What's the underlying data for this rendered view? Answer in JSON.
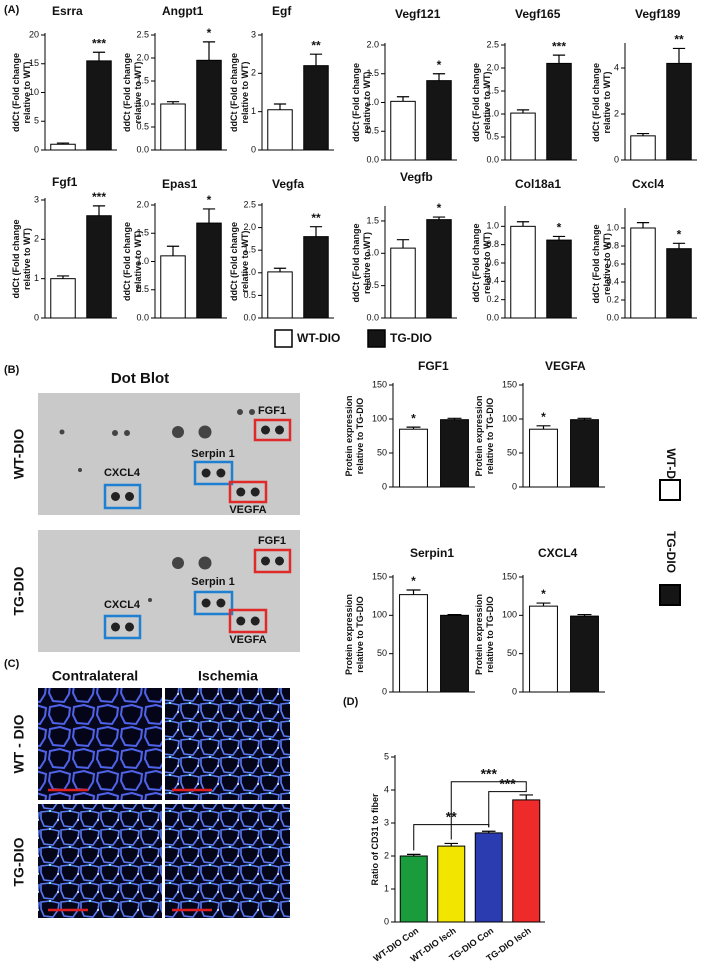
{
  "panel_labels": [
    "(A)",
    "(B)",
    "(C)",
    "(D)"
  ],
  "legend": [
    {
      "name": "WT-DIO",
      "color": "#ffffff"
    },
    {
      "name": "TG-DIO",
      "color": "#151515"
    }
  ],
  "dot_blot": {
    "title": "Dot Blot",
    "rows": [
      "WT-DIO",
      "TG-DIO"
    ],
    "spots": [
      "FGF1",
      "Serpin 1",
      "CXCL4",
      "VEGFA"
    ]
  },
  "histology": {
    "columns": [
      "Contralateral",
      "Ischemia"
    ],
    "rows": [
      "WT - DIO",
      "TG-DIO"
    ]
  },
  "chart_data": [
    {
      "type": "bar",
      "title": "Esrra",
      "ylabel": [
        "ddCt (Fold change",
        "relative to WT)"
      ],
      "values": [
        1,
        15.5
      ],
      "errors": [
        0.2,
        1.5
      ],
      "significance": [
        null,
        "***"
      ],
      "ylim": [
        0,
        20
      ],
      "yticks": [
        0,
        5,
        10,
        15,
        20
      ]
    },
    {
      "type": "bar",
      "title": "Angpt1",
      "ylabel": [
        "ddCt (Fold change",
        "relative to WT)"
      ],
      "values": [
        1.0,
        1.95
      ],
      "errors": [
        0.05,
        0.4
      ],
      "significance": [
        null,
        "*"
      ],
      "ylim": [
        0,
        2.5
      ],
      "yticks": [
        {
          "value": 0,
          "label": "0.0"
        },
        0.5,
        {
          "value": 1,
          "label": "1.0"
        },
        1.5,
        {
          "value": 2,
          "label": "2.0"
        },
        2.5
      ]
    },
    {
      "type": "bar",
      "title": "Egf",
      "ylabel": [
        "ddCt (Fold change",
        "relative to WT)"
      ],
      "values": [
        1.05,
        2.2
      ],
      "errors": [
        0.15,
        0.3
      ],
      "significance": [
        null,
        "**"
      ],
      "ylim": [
        0,
        3
      ],
      "yticks": [
        0,
        1,
        2,
        3
      ]
    },
    {
      "type": "bar",
      "title": "Vegf121",
      "ylabel": [
        "ddCt (Fold change",
        "relative to WT)"
      ],
      "values": [
        1.02,
        1.38
      ],
      "errors": [
        0.08,
        0.12
      ],
      "significance": [
        null,
        "*"
      ],
      "ylim": [
        0,
        2
      ],
      "yticks": [
        {
          "value": 0,
          "label": "0.0"
        },
        0.5,
        {
          "value": 1,
          "label": "1.0"
        },
        1.5,
        {
          "value": 2,
          "label": "2.0"
        }
      ]
    },
    {
      "type": "bar",
      "title": "Vegf165",
      "ylabel": [
        "ddCt (Fold change",
        "relative to WT)"
      ],
      "values": [
        1.02,
        2.1
      ],
      "errors": [
        0.07,
        0.18
      ],
      "significance": [
        null,
        "***"
      ],
      "ylim": [
        0,
        2.5
      ],
      "yticks": [
        {
          "value": 0,
          "label": "0.0"
        },
        0.5,
        {
          "value": 1,
          "label": "1.0"
        },
        1.5,
        {
          "value": 2,
          "label": "2.0"
        },
        2.5
      ]
    },
    {
      "type": "bar",
      "title": "Vegf189",
      "ylabel": [
        "ddCt (Fold change",
        "relative to WT)"
      ],
      "values": [
        1.05,
        4.2
      ],
      "errors": [
        0.1,
        0.65
      ],
      "significance": [
        null,
        "**"
      ],
      "ylim": [
        0,
        5
      ],
      "yticks": [
        0,
        2,
        4
      ]
    },
    {
      "type": "bar",
      "title": "Fgf1",
      "ylabel": [
        "ddCt (Fold change",
        "relative to WT)"
      ],
      "values": [
        1.0,
        2.6
      ],
      "errors": [
        0.07,
        0.25
      ],
      "significance": [
        null,
        "***"
      ],
      "ylim": [
        0,
        3
      ],
      "yticks": [
        0,
        1,
        2,
        3
      ]
    },
    {
      "type": "bar",
      "title": "Epas1",
      "ylabel": [
        "ddCt (Fold change",
        "relative to WT)"
      ],
      "values": [
        1.1,
        1.68
      ],
      "errors": [
        0.17,
        0.25
      ],
      "significance": [
        null,
        "*"
      ],
      "ylim": [
        0,
        2
      ],
      "yticks": [
        {
          "value": 0,
          "label": "0.0"
        },
        0.5,
        {
          "value": 1,
          "label": "1.0"
        },
        1.5,
        {
          "value": 2,
          "label": "2.0"
        }
      ]
    },
    {
      "type": "bar",
      "title": "Vegfa",
      "ylabel": [
        "ddCt (Fold change",
        "relative to WT)"
      ],
      "values": [
        1.02,
        1.8
      ],
      "errors": [
        0.08,
        0.22
      ],
      "significance": [
        null,
        "**"
      ],
      "ylim": [
        0,
        2.5
      ],
      "yticks": [
        {
          "value": 0,
          "label": "0.0"
        },
        0.5,
        {
          "value": 1,
          "label": "1.0"
        },
        1.5,
        {
          "value": 2,
          "label": "2.0"
        },
        2.5
      ]
    },
    {
      "type": "bar",
      "title": "Vegfb",
      "ylabel": [
        "ddCt (Fold change",
        "relative to WT)"
      ],
      "values": [
        1.08,
        1.52
      ],
      "errors": [
        0.13,
        0.04
      ],
      "significance": [
        null,
        "*"
      ],
      "ylim": [
        0,
        1.7
      ],
      "yticks": [
        {
          "value": 0,
          "label": "0.0"
        },
        0.5,
        {
          "value": 1,
          "label": "1.0"
        },
        1.5
      ]
    },
    {
      "type": "bar",
      "title": "Col18a1",
      "ylabel": [
        "ddCt (Fold change",
        "relative to WT)"
      ],
      "values": [
        1.0,
        0.85
      ],
      "errors": [
        0.05,
        0.04
      ],
      "significance": [
        null,
        "*"
      ],
      "ylim": [
        0,
        1.2
      ],
      "yticks": [
        {
          "value": 0,
          "label": "0.0"
        },
        0.2,
        0.4,
        0.6,
        0.8,
        {
          "value": 1,
          "label": "1.0"
        }
      ]
    },
    {
      "type": "bar",
      "title": "Cxcl4",
      "ylabel": [
        "ddCt (Fold change",
        "relative to WT)"
      ],
      "values": [
        1.0,
        0.77
      ],
      "errors": [
        0.06,
        0.06
      ],
      "significance": [
        null,
        "*"
      ],
      "ylim": [
        0,
        1.2
      ],
      "yticks": [
        {
          "value": 0,
          "label": "0.0"
        },
        0.2,
        0.4,
        0.6,
        0.8,
        {
          "value": 1,
          "label": "1.0"
        }
      ]
    },
    {
      "type": "bar",
      "title": "FGF1",
      "ylabel": [
        "Protein expression",
        "relative to TG-DIO"
      ],
      "values": [
        85,
        99
      ],
      "errors": [
        3,
        2
      ],
      "significance": [
        "*",
        null
      ],
      "ylim": [
        0,
        150
      ],
      "yticks": [
        0,
        50,
        100,
        150
      ]
    },
    {
      "type": "bar",
      "title": "VEGFA",
      "ylabel": [
        "Protein expression",
        "relative to TG-DIO"
      ],
      "values": [
        85,
        99
      ],
      "errors": [
        5,
        2
      ],
      "significance": [
        "*",
        null
      ],
      "ylim": [
        0,
        150
      ],
      "yticks": [
        0,
        50,
        100,
        150
      ]
    },
    {
      "type": "bar",
      "title": "Serpin1",
      "ylabel": [
        "Protein expression",
        "relative to TG-DIO"
      ],
      "values": [
        127,
        100
      ],
      "errors": [
        6,
        1
      ],
      "significance": [
        "*",
        null
      ],
      "ylim": [
        0,
        150
      ],
      "yticks": [
        0,
        50,
        100,
        150
      ]
    },
    {
      "type": "bar",
      "title": "CXCL4",
      "ylabel": [
        "Protein expression",
        "relative to TG-DIO"
      ],
      "values": [
        112,
        99
      ],
      "errors": [
        4,
        2
      ],
      "significance": [
        "*",
        null
      ],
      "ylim": [
        0,
        150
      ],
      "yticks": [
        0,
        50,
        100,
        150
      ]
    },
    {
      "type": "bar",
      "ylabel": [
        "Ratio of CD31 to fiber"
      ],
      "categories": [
        "WT-DIO Con",
        "WT-DIO Isch",
        "TG-DIO Con",
        "TG-DIO Isch"
      ],
      "values": [
        2.0,
        2.3,
        2.7,
        3.7
      ],
      "errors": [
        0.05,
        0.08,
        0.05,
        0.15
      ],
      "colors": [
        "#1a9b3c",
        "#f2e600",
        "#2b3bb0",
        "#ee2a2a"
      ],
      "comparisons": [
        "**",
        "***",
        "***"
      ],
      "ylim": [
        0,
        5
      ],
      "yticks": [
        0,
        1,
        2,
        3,
        4,
        5
      ]
    }
  ]
}
